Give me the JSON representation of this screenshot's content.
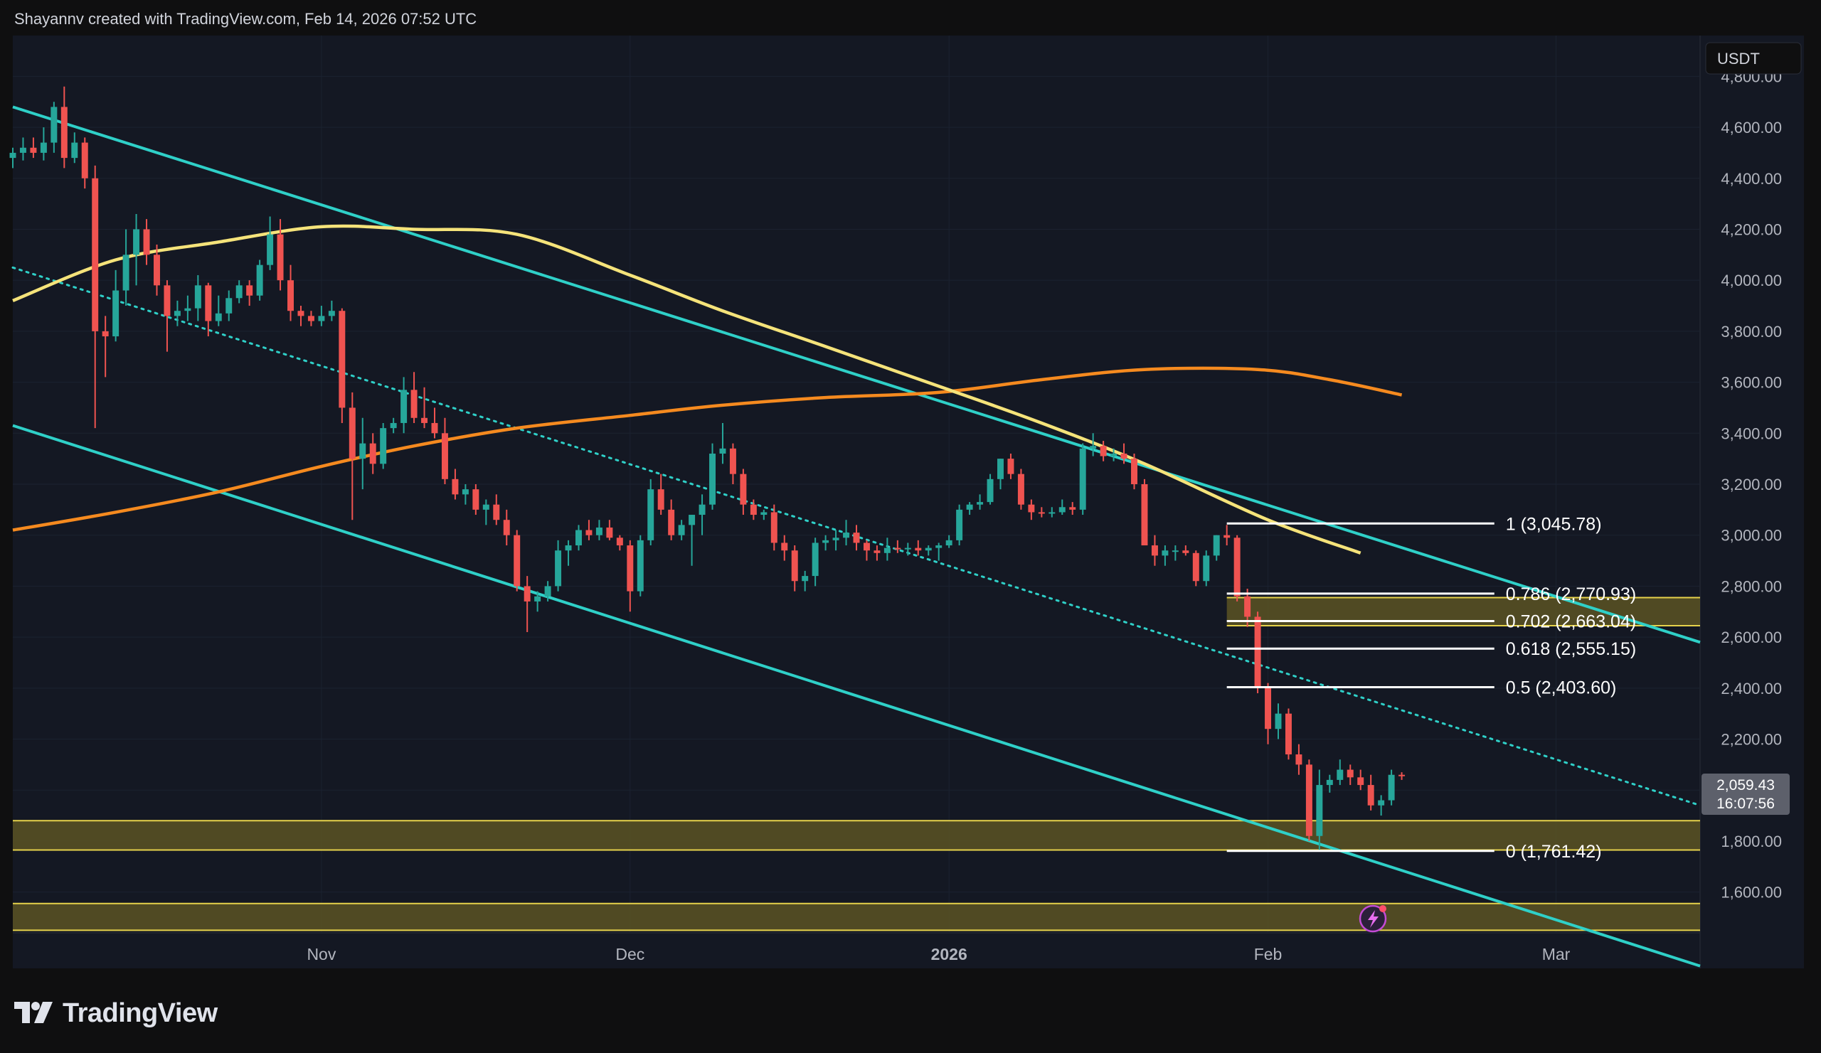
{
  "header": {
    "attribution": "Shayannv created with TradingView.com, Feb 14, 2026 07:52 UTC"
  },
  "brand": {
    "name": "TradingView"
  },
  "colors": {
    "background": "#0f0f10",
    "pane": "#141823",
    "grid": "#1b2230",
    "up": "#26a69a",
    "down": "#ef5350",
    "channel": "#2fd0c8",
    "ma_yellow": "#f5e37a",
    "ma_orange": "#f58a1f",
    "zone_fill": "#5b5423",
    "zone_border": "#e6d24b",
    "fib_line": "#ffffff"
  },
  "axis": {
    "currency": "USDT",
    "price_badge": "2,059.43",
    "countdown": "16:07:56"
  },
  "chart_data": {
    "type": "candlestick",
    "title": "",
    "currency": "USDT",
    "ylim": [
      1440,
      4960
    ],
    "y_ticks": [
      1600,
      1800,
      2000,
      2200,
      2400,
      2600,
      2800,
      3000,
      3200,
      3400,
      3600,
      3800,
      4000,
      4200,
      4400,
      4600,
      4800
    ],
    "y_tick_labels": [
      "1,600.00",
      "1,800.00",
      "2,000.00",
      "2,200.00",
      "2,400.00",
      "2,600.00",
      "2,800.00",
      "3,000.00",
      "3,200.00",
      "3,400.00",
      "3,600.00",
      "3,800.00",
      "4,000.00",
      "4,200.00",
      "4,400.00",
      "4,600.00",
      "4,800.00"
    ],
    "x_labels": [
      {
        "date": "2025-11-01",
        "label": "Nov",
        "bold": false
      },
      {
        "date": "2025-12-01",
        "label": "Dec",
        "bold": false
      },
      {
        "date": "2026-01-01",
        "label": "2026",
        "bold": true
      },
      {
        "date": "2026-02-01",
        "label": "Feb",
        "bold": false
      },
      {
        "date": "2026-03-01",
        "label": "Mar",
        "bold": false
      }
    ],
    "xlim": [
      "2025-10-02",
      "2026-03-15"
    ],
    "candles": [
      [
        "2025-10-02",
        4480,
        4520,
        4440,
        4500
      ],
      [
        "2025-10-03",
        4500,
        4560,
        4470,
        4520
      ],
      [
        "2025-10-04",
        4520,
        4560,
        4480,
        4500
      ],
      [
        "2025-10-05",
        4500,
        4600,
        4470,
        4540
      ],
      [
        "2025-10-06",
        4540,
        4700,
        4500,
        4680
      ],
      [
        "2025-10-07",
        4680,
        4760,
        4440,
        4480
      ],
      [
        "2025-10-08",
        4480,
        4580,
        4460,
        4540
      ],
      [
        "2025-10-09",
        4540,
        4560,
        4360,
        4400
      ],
      [
        "2025-10-10",
        4400,
        4450,
        3420,
        3800
      ],
      [
        "2025-10-11",
        3800,
        3860,
        3620,
        3780
      ],
      [
        "2025-10-12",
        3780,
        4040,
        3760,
        3960
      ],
      [
        "2025-10-13",
        3960,
        4200,
        3900,
        4100
      ],
      [
        "2025-10-14",
        4100,
        4260,
        3980,
        4200
      ],
      [
        "2025-10-15",
        4200,
        4240,
        4060,
        4100
      ],
      [
        "2025-10-16",
        4100,
        4140,
        3940,
        3980
      ],
      [
        "2025-10-17",
        3980,
        4000,
        3720,
        3860
      ],
      [
        "2025-10-18",
        3860,
        3920,
        3820,
        3880
      ],
      [
        "2025-10-19",
        3880,
        3940,
        3840,
        3890
      ],
      [
        "2025-10-20",
        3890,
        4020,
        3840,
        3980
      ],
      [
        "2025-10-21",
        3980,
        3990,
        3780,
        3840
      ],
      [
        "2025-10-22",
        3840,
        3940,
        3820,
        3870
      ],
      [
        "2025-10-23",
        3870,
        3960,
        3840,
        3930
      ],
      [
        "2025-10-24",
        3930,
        4000,
        3910,
        3980
      ],
      [
        "2025-10-25",
        3980,
        4000,
        3900,
        3940
      ],
      [
        "2025-10-26",
        3940,
        4080,
        3920,
        4060
      ],
      [
        "2025-10-27",
        4060,
        4250,
        4040,
        4180
      ],
      [
        "2025-10-28",
        4180,
        4240,
        3960,
        4000
      ],
      [
        "2025-10-29",
        4000,
        4060,
        3840,
        3880
      ],
      [
        "2025-10-30",
        3880,
        3900,
        3820,
        3860
      ],
      [
        "2025-10-31",
        3860,
        3880,
        3820,
        3840
      ],
      [
        "2025-11-01",
        3840,
        3900,
        3820,
        3860
      ],
      [
        "2025-11-02",
        3860,
        3920,
        3840,
        3880
      ],
      [
        "2025-11-03",
        3880,
        3890,
        3440,
        3500
      ],
      [
        "2025-11-04",
        3500,
        3560,
        3060,
        3300
      ],
      [
        "2025-11-05",
        3300,
        3460,
        3180,
        3360
      ],
      [
        "2025-11-06",
        3360,
        3400,
        3240,
        3280
      ],
      [
        "2025-11-07",
        3280,
        3440,
        3260,
        3420
      ],
      [
        "2025-11-08",
        3420,
        3460,
        3400,
        3440
      ],
      [
        "2025-11-09",
        3440,
        3620,
        3400,
        3570
      ],
      [
        "2025-11-10",
        3570,
        3640,
        3440,
        3460
      ],
      [
        "2025-11-11",
        3460,
        3580,
        3420,
        3440
      ],
      [
        "2025-11-12",
        3440,
        3500,
        3380,
        3400
      ],
      [
        "2025-11-13",
        3400,
        3460,
        3200,
        3220
      ],
      [
        "2025-11-14",
        3220,
        3260,
        3140,
        3160
      ],
      [
        "2025-11-15",
        3160,
        3200,
        3120,
        3180
      ],
      [
        "2025-11-16",
        3180,
        3200,
        3080,
        3100
      ],
      [
        "2025-11-17",
        3100,
        3140,
        3040,
        3120
      ],
      [
        "2025-11-18",
        3120,
        3160,
        3040,
        3060
      ],
      [
        "2025-11-19",
        3060,
        3100,
        2960,
        3000
      ],
      [
        "2025-11-20",
        3000,
        3020,
        2780,
        2800
      ],
      [
        "2025-11-21",
        2800,
        2840,
        2620,
        2740
      ],
      [
        "2025-11-22",
        2740,
        2780,
        2700,
        2760
      ],
      [
        "2025-11-23",
        2760,
        2820,
        2740,
        2800
      ],
      [
        "2025-11-24",
        2800,
        2980,
        2780,
        2940
      ],
      [
        "2025-11-25",
        2940,
        2980,
        2880,
        2960
      ],
      [
        "2025-11-26",
        2960,
        3040,
        2940,
        3020
      ],
      [
        "2025-11-27",
        3020,
        3060,
        2980,
        3000
      ],
      [
        "2025-11-28",
        3000,
        3060,
        2980,
        3030
      ],
      [
        "2025-11-29",
        3030,
        3060,
        2980,
        2990
      ],
      [
        "2025-11-30",
        2990,
        3000,
        2940,
        2960
      ],
      [
        "2025-12-01",
        2960,
        2980,
        2700,
        2780
      ],
      [
        "2025-12-02",
        2780,
        3000,
        2760,
        2980
      ],
      [
        "2025-12-03",
        2980,
        3220,
        2960,
        3180
      ],
      [
        "2025-12-04",
        3180,
        3240,
        3080,
        3100
      ],
      [
        "2025-12-05",
        3100,
        3140,
        2980,
        3000
      ],
      [
        "2025-12-06",
        3000,
        3060,
        2980,
        3040
      ],
      [
        "2025-12-07",
        3040,
        3080,
        2880,
        3080
      ],
      [
        "2025-12-08",
        3080,
        3160,
        3000,
        3120
      ],
      [
        "2025-12-09",
        3120,
        3360,
        3100,
        3320
      ],
      [
        "2025-12-10",
        3320,
        3440,
        3280,
        3340
      ],
      [
        "2025-12-11",
        3340,
        3360,
        3200,
        3240
      ],
      [
        "2025-12-12",
        3240,
        3260,
        3080,
        3120
      ],
      [
        "2025-12-13",
        3120,
        3140,
        3060,
        3080
      ],
      [
        "2025-12-14",
        3080,
        3100,
        3060,
        3090
      ],
      [
        "2025-12-15",
        3090,
        3120,
        2940,
        2970
      ],
      [
        "2025-12-16",
        2970,
        3000,
        2900,
        2940
      ],
      [
        "2025-12-17",
        2940,
        2960,
        2780,
        2820
      ],
      [
        "2025-12-18",
        2820,
        2860,
        2780,
        2840
      ],
      [
        "2025-12-19",
        2840,
        2990,
        2800,
        2970
      ],
      [
        "2025-12-20",
        2970,
        3000,
        2940,
        2980
      ],
      [
        "2025-12-21",
        2980,
        3020,
        2940,
        2990
      ],
      [
        "2025-12-22",
        2990,
        3060,
        2960,
        3010
      ],
      [
        "2025-12-23",
        3010,
        3040,
        2940,
        2970
      ],
      [
        "2025-12-24",
        2970,
        2980,
        2900,
        2940
      ],
      [
        "2025-12-25",
        2940,
        2960,
        2900,
        2930
      ],
      [
        "2025-12-26",
        2930,
        2990,
        2900,
        2950
      ],
      [
        "2025-12-27",
        2950,
        2980,
        2930,
        2945
      ],
      [
        "2025-12-28",
        2945,
        2970,
        2920,
        2950
      ],
      [
        "2025-12-29",
        2950,
        2980,
        2920,
        2940
      ],
      [
        "2025-12-30",
        2940,
        2960,
        2920,
        2950
      ],
      [
        "2025-12-31",
        2950,
        2970,
        2900,
        2960
      ],
      [
        "2026-01-01",
        2960,
        3000,
        2950,
        2980
      ],
      [
        "2026-01-02",
        2980,
        3120,
        2960,
        3100
      ],
      [
        "2026-01-03",
        3100,
        3130,
        3080,
        3120
      ],
      [
        "2026-01-04",
        3120,
        3160,
        3100,
        3130
      ],
      [
        "2026-01-05",
        3130,
        3240,
        3120,
        3220
      ],
      [
        "2026-01-06",
        3220,
        3300,
        3180,
        3300
      ],
      [
        "2026-01-07",
        3300,
        3320,
        3220,
        3240
      ],
      [
        "2026-01-08",
        3240,
        3260,
        3100,
        3120
      ],
      [
        "2026-01-09",
        3120,
        3140,
        3060,
        3090
      ],
      [
        "2026-01-10",
        3090,
        3110,
        3070,
        3085
      ],
      [
        "2026-01-11",
        3085,
        3110,
        3070,
        3090
      ],
      [
        "2026-01-12",
        3090,
        3140,
        3080,
        3110
      ],
      [
        "2026-01-13",
        3110,
        3130,
        3080,
        3100
      ],
      [
        "2026-01-14",
        3100,
        3360,
        3080,
        3340
      ],
      [
        "2026-01-15",
        3340,
        3400,
        3310,
        3350
      ],
      [
        "2026-01-16",
        3350,
        3370,
        3290,
        3310
      ],
      [
        "2026-01-17",
        3310,
        3340,
        3290,
        3320
      ],
      [
        "2026-01-18",
        3320,
        3360,
        3280,
        3300
      ],
      [
        "2026-01-19",
        3300,
        3320,
        3180,
        3200
      ],
      [
        "2026-01-20",
        3200,
        3220,
        2960,
        2960
      ],
      [
        "2026-01-21",
        2960,
        3000,
        2880,
        2920
      ],
      [
        "2026-01-22",
        2920,
        2960,
        2880,
        2940
      ],
      [
        "2026-01-23",
        2940,
        2960,
        2900,
        2940
      ],
      [
        "2026-01-24",
        2940,
        2960,
        2920,
        2930
      ],
      [
        "2026-01-25",
        2930,
        2940,
        2800,
        2820
      ],
      [
        "2026-01-26",
        2820,
        2940,
        2800,
        2920
      ],
      [
        "2026-01-27",
        2920,
        3000,
        2900,
        3000
      ],
      [
        "2026-01-28",
        3000,
        3040,
        2960,
        2990
      ],
      [
        "2026-01-29",
        2990,
        3000,
        2740,
        2760
      ],
      [
        "2026-01-30",
        2760,
        2790,
        2640,
        2680
      ],
      [
        "2026-01-31",
        2680,
        2700,
        2380,
        2400
      ],
      [
        "2026-02-01",
        2400,
        2420,
        2180,
        2240
      ],
      [
        "2026-02-02",
        2240,
        2340,
        2200,
        2300
      ],
      [
        "2026-02-03",
        2300,
        2320,
        2120,
        2140
      ],
      [
        "2026-02-04",
        2140,
        2180,
        2060,
        2100
      ],
      [
        "2026-02-05",
        2100,
        2120,
        1800,
        1820
      ],
      [
        "2026-02-06",
        1820,
        2080,
        1760,
        2020
      ],
      [
        "2026-02-07",
        2020,
        2060,
        1990,
        2040
      ],
      [
        "2026-02-08",
        2040,
        2120,
        2020,
        2080
      ],
      [
        "2026-02-09",
        2080,
        2100,
        2020,
        2050
      ],
      [
        "2026-02-10",
        2050,
        2080,
        2000,
        2020
      ],
      [
        "2026-02-11",
        2020,
        2060,
        1920,
        1940
      ],
      [
        "2026-02-12",
        1940,
        1980,
        1900,
        1960
      ],
      [
        "2026-02-13",
        1960,
        2080,
        1940,
        2060
      ],
      [
        "2026-02-14",
        2060,
        2070,
        2040,
        2059.43
      ]
    ],
    "ma_100": [
      [
        "2025-10-02",
        3920
      ],
      [
        "2025-10-12",
        4080
      ],
      [
        "2025-10-22",
        4150
      ],
      [
        "2025-11-01",
        4210
      ],
      [
        "2025-11-10",
        4200
      ],
      [
        "2025-11-20",
        4180
      ],
      [
        "2025-12-01",
        4020
      ],
      [
        "2025-12-10",
        3880
      ],
      [
        "2025-12-20",
        3740
      ],
      [
        "2026-01-01",
        3570
      ],
      [
        "2026-01-10",
        3440
      ],
      [
        "2026-01-20",
        3280
      ],
      [
        "2026-02-01",
        3060
      ],
      [
        "2026-02-10",
        2930
      ]
    ],
    "ma_200": [
      [
        "2025-10-02",
        3020
      ],
      [
        "2025-10-12",
        3090
      ],
      [
        "2025-10-22",
        3170
      ],
      [
        "2025-11-01",
        3270
      ],
      [
        "2025-11-10",
        3350
      ],
      [
        "2025-11-20",
        3420
      ],
      [
        "2025-12-01",
        3470
      ],
      [
        "2025-12-10",
        3510
      ],
      [
        "2025-12-20",
        3540
      ],
      [
        "2025-12-31",
        3560
      ],
      [
        "2026-01-10",
        3610
      ],
      [
        "2026-01-20",
        3650
      ],
      [
        "2026-01-31",
        3650
      ],
      [
        "2026-02-07",
        3610
      ],
      [
        "2026-02-14",
        3550
      ]
    ],
    "channel_upper": [
      [
        "2025-10-02",
        4680
      ],
      [
        "2026-03-15",
        2580
      ]
    ],
    "channel_lower": [
      [
        "2025-10-02",
        3430
      ],
      [
        "2026-03-15",
        1310
      ]
    ],
    "channel_mid": [
      [
        "2025-10-02",
        4050
      ],
      [
        "2026-03-15",
        1940
      ]
    ],
    "fib_levels": [
      {
        "ratio": "1",
        "price": 3045.78,
        "label": "1 (3,045.78)"
      },
      {
        "ratio": "0.786",
        "price": 2770.93,
        "label": "0.786 (2,770.93)"
      },
      {
        "ratio": "0.702",
        "price": 2663.04,
        "label": "0.702 (2,663.04)"
      },
      {
        "ratio": "0.618",
        "price": 2555.15,
        "label": "0.618 (2,555.15)"
      },
      {
        "ratio": "0.5",
        "price": 2403.6,
        "label": "0.5 (2,403.60)"
      },
      {
        "ratio": "0",
        "price": 1761.42,
        "label": "0 (1,761.42)"
      }
    ],
    "fib_range": [
      "2026-01-28",
      "2026-02-23"
    ],
    "zones": [
      {
        "low": 2645,
        "high": 2755,
        "from": "2026-01-28",
        "to": "2026-03-15"
      },
      {
        "low": 1765,
        "high": 1880,
        "from": "2025-10-02",
        "to": "2026-03-15"
      },
      {
        "low": 1450,
        "high": 1555,
        "from": "2025-10-02",
        "to": "2026-03-15"
      }
    ]
  }
}
